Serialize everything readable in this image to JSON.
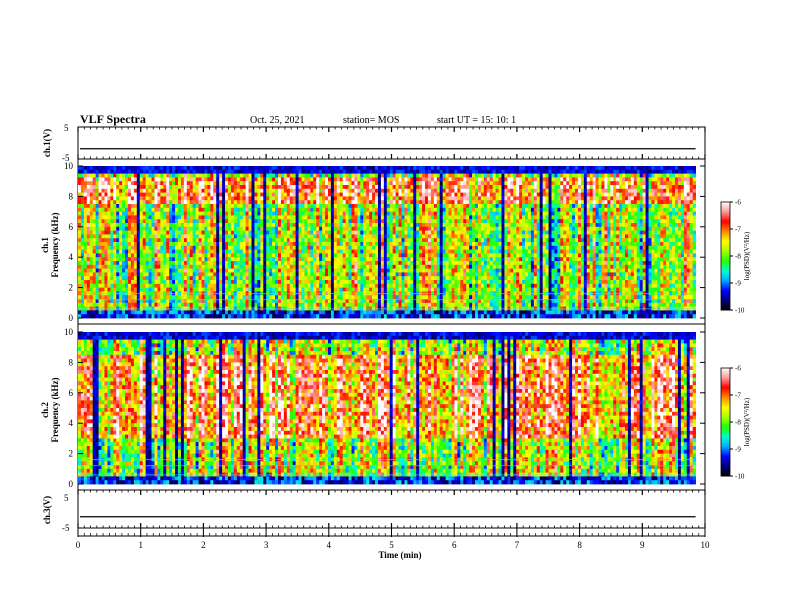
{
  "header": {
    "title": "VLF Spectra",
    "date": "Oct. 25, 2021",
    "station": "station= MOS",
    "start": "start  UT =   15: 10: 1"
  },
  "chart_data": [
    {
      "type": "line",
      "panel": "ch1-waveform",
      "ylabel": "ch.1(V)",
      "ylim": [
        -5,
        5
      ],
      "yticks": [
        "5",
        "-5"
      ],
      "xlim": [
        0,
        10
      ],
      "series": [
        {
          "values_note": "flat trace near -2.4 V",
          "level": -2.4
        }
      ]
    },
    {
      "type": "heatmap",
      "panel": "ch1-spectrogram",
      "ylabel_ch": "ch.1",
      "ylabel": "Frequency (kHz)",
      "ylim": [
        0,
        10
      ],
      "yticks": [
        "0",
        "2",
        "4",
        "6",
        "8",
        "10"
      ],
      "xlim": [
        0,
        9.85
      ],
      "colorbar": {
        "label": "log(PSD)(V²/Hz)",
        "range": [
          -10,
          -6
        ],
        "ticks": [
          "-6",
          "-7",
          "-8",
          "-9",
          "-10"
        ]
      }
    },
    {
      "type": "heatmap",
      "panel": "ch2-spectrogram",
      "ylabel_ch": "ch.2",
      "ylabel": "Frequency (kHz)",
      "ylim": [
        0,
        10
      ],
      "yticks": [
        "0",
        "2",
        "4",
        "6",
        "8",
        "10"
      ],
      "xlim": [
        0,
        9.85
      ],
      "colorbar": {
        "label": "log(PSD)(V²/Hz)",
        "range": [
          -10,
          -6
        ],
        "ticks": [
          "-6",
          "-7",
          "-8",
          "-9",
          "-10"
        ]
      }
    },
    {
      "type": "line",
      "panel": "ch3-waveform",
      "ylabel": "ch.3(V)",
      "ylim": [
        -5,
        5
      ],
      "yticks": [
        "5",
        "-5"
      ],
      "xlim": [
        0,
        10
      ],
      "series": [
        {
          "values_note": "flat trace near -2.4 V",
          "level": -2.4
        }
      ]
    }
  ],
  "xaxis": {
    "label": "Time  (min)",
    "ticks": [
      "0",
      "1",
      "2",
      "3",
      "4",
      "5",
      "6",
      "7",
      "8",
      "9",
      "10"
    ],
    "range": [
      0,
      10
    ]
  },
  "colors": {
    "colormap": [
      "#000000",
      "#00007a",
      "#0000ff",
      "#00aaff",
      "#00ffcc",
      "#22ff00",
      "#aaff00",
      "#ffff00",
      "#ff8800",
      "#ff0000",
      "#ff9999",
      "#ffffff"
    ]
  }
}
